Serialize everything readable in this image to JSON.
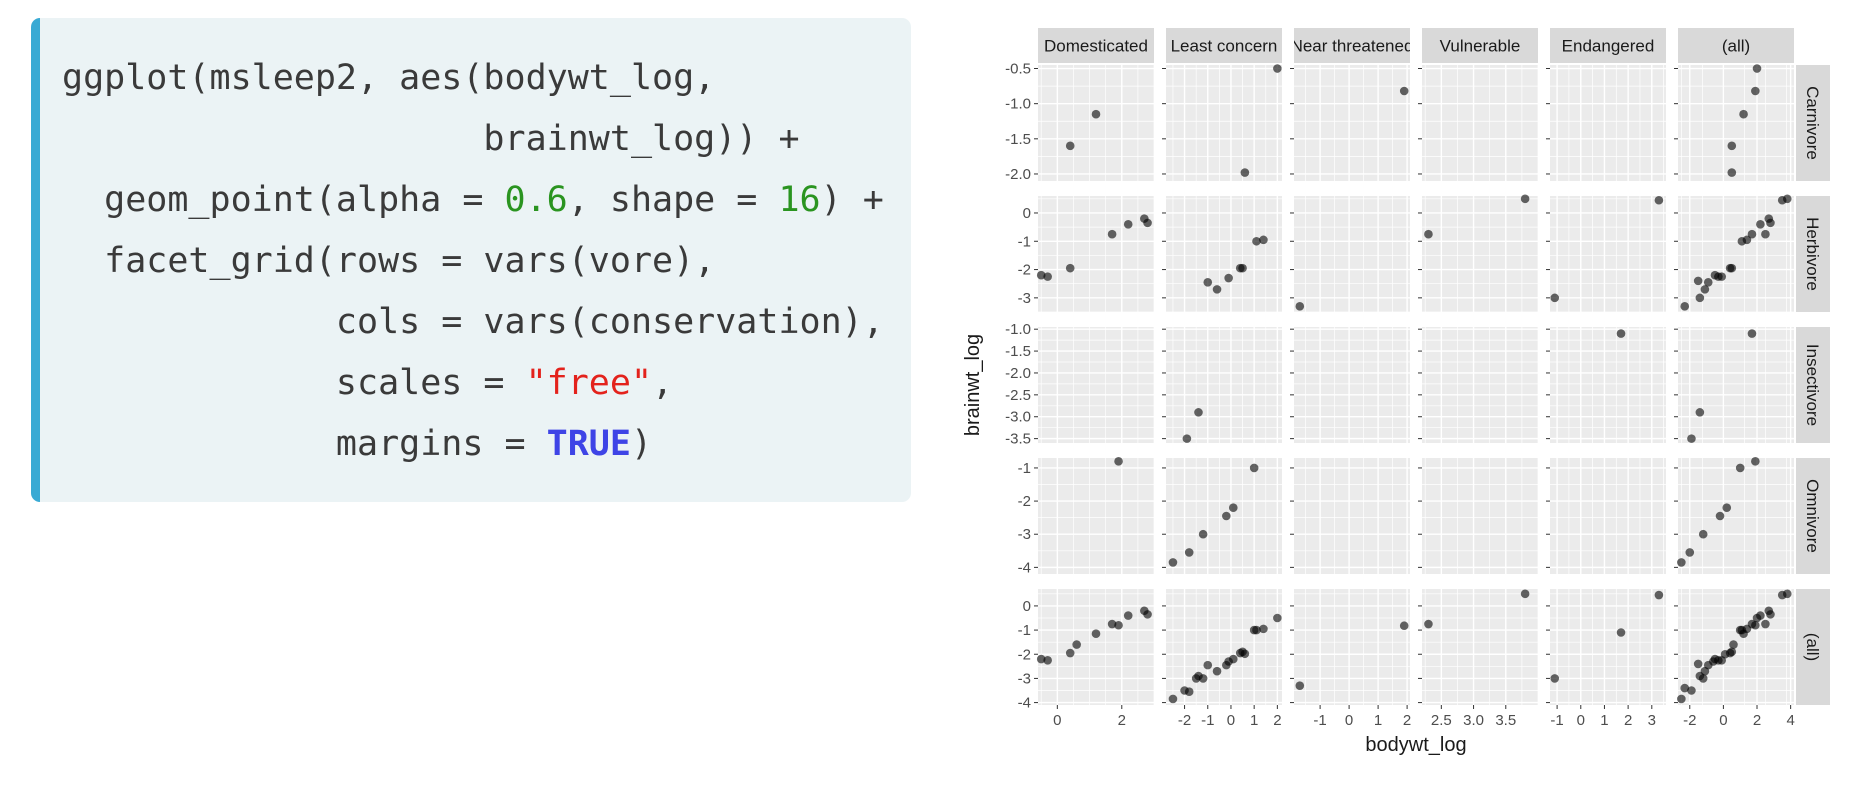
{
  "code": {
    "lines": [
      [
        {
          "t": "plain",
          "v": "ggplot(msleep2, aes(bodywt_log,"
        }
      ],
      [
        {
          "t": "plain",
          "v": "                    brainwt_log)) +"
        }
      ],
      [
        {
          "t": "plain",
          "v": "  geom_point(alpha = "
        },
        {
          "t": "num",
          "v": "0.6"
        },
        {
          "t": "plain",
          "v": ", shape = "
        },
        {
          "t": "num",
          "v": "16"
        },
        {
          "t": "plain",
          "v": ") +"
        }
      ],
      [
        {
          "t": "plain",
          "v": "  facet_grid(rows = vars(vore),"
        }
      ],
      [
        {
          "t": "plain",
          "v": "             cols = vars(conservation),"
        }
      ],
      [
        {
          "t": "plain",
          "v": "             scales = "
        },
        {
          "t": "str",
          "v": "\"free\""
        },
        {
          "t": "plain",
          "v": ","
        }
      ],
      [
        {
          "t": "plain",
          "v": "             margins = "
        },
        {
          "t": "kw",
          "v": "TRUE"
        },
        {
          "t": "plain",
          "v": ")"
        }
      ]
    ]
  },
  "colors": {
    "panel_bg": "#ebebeb",
    "strip_bg": "#d9d9d9",
    "grid": "#ffffff",
    "point": "#000000",
    "code_bg": "#ebf3f5",
    "code_accent": "#39aad4"
  },
  "chart_data": {
    "type": "scatter",
    "facet": "grid",
    "xlabel": "bodywt_log",
    "ylabel": "brainwt_log",
    "point_alpha": 0.6,
    "col_labels": [
      "Domesticated",
      "Least concern",
      "Near threatened",
      "Vulnerable",
      "Endangered",
      "(all)"
    ],
    "row_labels": [
      "Carnivore",
      "Herbivore",
      "Insectivore",
      "Omnivore",
      "(all)"
    ],
    "columns": [
      {
        "xlim": [
          -0.6,
          3.0
        ],
        "xticks": [
          {
            "v": 0,
            "l": "0"
          },
          {
            "v": 2,
            "l": "2"
          }
        ]
      },
      {
        "xlim": [
          -2.8,
          2.2
        ],
        "xticks": [
          {
            "v": -2,
            "l": "-2"
          },
          {
            "v": -1,
            "l": "-1"
          },
          {
            "v": 0,
            "l": "0"
          },
          {
            "v": 1,
            "l": "1"
          },
          {
            "v": 2,
            "l": "2"
          }
        ]
      },
      {
        "xlim": [
          -1.9,
          2.1
        ],
        "xticks": [
          {
            "v": -1,
            "l": "-1"
          },
          {
            "v": 0,
            "l": "0"
          },
          {
            "v": 1,
            "l": "1"
          },
          {
            "v": 2,
            "l": "2"
          }
        ]
      },
      {
        "xlim": [
          2.2,
          4.0
        ],
        "xticks": [
          {
            "v": 2.5,
            "l": "2.5"
          },
          {
            "v": 3.0,
            "l": "3.0"
          },
          {
            "v": 3.5,
            "l": "3.5"
          }
        ]
      },
      {
        "xlim": [
          -1.3,
          3.6
        ],
        "xticks": [
          {
            "v": -1,
            "l": "-1"
          },
          {
            "v": 0,
            "l": "0"
          },
          {
            "v": 1,
            "l": "1"
          },
          {
            "v": 2,
            "l": "2"
          },
          {
            "v": 3,
            "l": "3"
          }
        ]
      },
      {
        "xlim": [
          -2.7,
          4.2
        ],
        "xticks": [
          {
            "v": -2,
            "l": "-2"
          },
          {
            "v": 0,
            "l": "0"
          },
          {
            "v": 2,
            "l": "2"
          },
          {
            "v": 4,
            "l": "4"
          }
        ]
      }
    ],
    "rows": [
      {
        "ylim": [
          -2.1,
          -0.45
        ],
        "yticks": [
          {
            "v": -0.5,
            "l": "-0.5"
          },
          {
            "v": -1.0,
            "l": "-1.0"
          },
          {
            "v": -1.5,
            "l": "-1.5"
          },
          {
            "v": -2.0,
            "l": "-2.0"
          }
        ]
      },
      {
        "ylim": [
          -3.5,
          0.6
        ],
        "yticks": [
          {
            "v": 0,
            "l": "0"
          },
          {
            "v": -1,
            "l": "-1"
          },
          {
            "v": -2,
            "l": "-2"
          },
          {
            "v": -3,
            "l": "-3"
          }
        ]
      },
      {
        "ylim": [
          -3.6,
          -0.95
        ],
        "yticks": [
          {
            "v": -1.0,
            "l": "-1.0"
          },
          {
            "v": -1.5,
            "l": "-1.5"
          },
          {
            "v": -2.0,
            "l": "-2.0"
          },
          {
            "v": -2.5,
            "l": "-2.5"
          },
          {
            "v": -3.0,
            "l": "-3.0"
          },
          {
            "v": -3.5,
            "l": "-3.5"
          }
        ]
      },
      {
        "ylim": [
          -4.2,
          -0.7
        ],
        "yticks": [
          {
            "v": -1,
            "l": "-1"
          },
          {
            "v": -2,
            "l": "-2"
          },
          {
            "v": -3,
            "l": "-3"
          },
          {
            "v": -4,
            "l": "-4"
          }
        ]
      },
      {
        "ylim": [
          -4.1,
          0.7
        ],
        "yticks": [
          {
            "v": 0,
            "l": "0"
          },
          {
            "v": -1,
            "l": "-1"
          },
          {
            "v": -2,
            "l": "-2"
          },
          {
            "v": -3,
            "l": "-3"
          },
          {
            "v": -4,
            "l": "-4"
          }
        ]
      }
    ],
    "panels": [
      {
        "row": 0,
        "col": 0,
        "points": [
          [
            0.4,
            -1.6
          ],
          [
            1.2,
            -1.15
          ]
        ]
      },
      {
        "row": 0,
        "col": 1,
        "points": [
          [
            0.6,
            -1.98
          ],
          [
            2.0,
            -0.5
          ]
        ]
      },
      {
        "row": 0,
        "col": 2,
        "points": [
          [
            1.9,
            -0.82
          ]
        ]
      },
      {
        "row": 0,
        "col": 5,
        "points": [
          [
            0.5,
            -1.98
          ],
          [
            0.5,
            -1.6
          ],
          [
            1.2,
            -1.15
          ],
          [
            1.9,
            -0.82
          ],
          [
            2.0,
            -0.5
          ]
        ]
      },
      {
        "row": 1,
        "col": 0,
        "points": [
          [
            -0.5,
            -2.2
          ],
          [
            -0.3,
            -2.25
          ],
          [
            0.4,
            -1.95
          ],
          [
            1.7,
            -0.75
          ],
          [
            2.2,
            -0.4
          ],
          [
            2.7,
            -0.2
          ],
          [
            2.8,
            -0.35
          ]
        ]
      },
      {
        "row": 1,
        "col": 1,
        "points": [
          [
            -1.0,
            -2.45
          ],
          [
            -0.6,
            -2.7
          ],
          [
            -0.1,
            -2.3
          ],
          [
            0.4,
            -1.95
          ],
          [
            0.5,
            -1.95
          ],
          [
            1.1,
            -1.0
          ],
          [
            1.4,
            -0.95
          ]
        ]
      },
      {
        "row": 1,
        "col": 2,
        "points": [
          [
            -1.7,
            -3.3
          ]
        ]
      },
      {
        "row": 1,
        "col": 3,
        "points": [
          [
            2.3,
            -0.75
          ],
          [
            3.8,
            0.5
          ]
        ]
      },
      {
        "row": 1,
        "col": 4,
        "points": [
          [
            -1.1,
            -3.0
          ],
          [
            3.3,
            0.45
          ]
        ]
      },
      {
        "row": 1,
        "col": 5,
        "points": [
          [
            -2.3,
            -3.3
          ],
          [
            -1.5,
            -2.4
          ],
          [
            -1.4,
            -3.0
          ],
          [
            -1.1,
            -2.7
          ],
          [
            -0.9,
            -2.45
          ],
          [
            -0.5,
            -2.2
          ],
          [
            -0.3,
            -2.25
          ],
          [
            -0.1,
            -2.25
          ],
          [
            0.4,
            -1.95
          ],
          [
            0.5,
            -1.95
          ],
          [
            1.1,
            -1.0
          ],
          [
            1.4,
            -0.95
          ],
          [
            1.7,
            -0.75
          ],
          [
            2.2,
            -0.4
          ],
          [
            2.5,
            -0.75
          ],
          [
            2.7,
            -0.2
          ],
          [
            2.8,
            -0.35
          ],
          [
            3.5,
            0.45
          ],
          [
            3.8,
            0.5
          ]
        ]
      },
      {
        "row": 2,
        "col": 1,
        "points": [
          [
            -1.9,
            -3.5
          ],
          [
            -1.4,
            -2.9
          ]
        ]
      },
      {
        "row": 2,
        "col": 4,
        "points": [
          [
            1.7,
            -1.1
          ]
        ]
      },
      {
        "row": 2,
        "col": 5,
        "points": [
          [
            -1.9,
            -3.5
          ],
          [
            -1.4,
            -2.9
          ],
          [
            1.7,
            -1.1
          ]
        ]
      },
      {
        "row": 3,
        "col": 0,
        "points": [
          [
            1.9,
            -0.8
          ]
        ]
      },
      {
        "row": 3,
        "col": 1,
        "points": [
          [
            -2.5,
            -3.85
          ],
          [
            -1.8,
            -3.55
          ],
          [
            -1.2,
            -3.0
          ],
          [
            -0.2,
            -2.45
          ],
          [
            0.1,
            -2.2
          ],
          [
            1.0,
            -1.0
          ]
        ]
      },
      {
        "row": 3,
        "col": 5,
        "points": [
          [
            -2.5,
            -3.85
          ],
          [
            -2.0,
            -3.55
          ],
          [
            -1.2,
            -3.0
          ],
          [
            -0.2,
            -2.45
          ],
          [
            0.2,
            -2.2
          ],
          [
            1.0,
            -1.0
          ],
          [
            1.9,
            -0.8
          ]
        ]
      },
      {
        "row": 4,
        "col": 0,
        "points": [
          [
            -0.5,
            -2.2
          ],
          [
            -0.3,
            -2.25
          ],
          [
            0.4,
            -1.95
          ],
          [
            0.6,
            -1.6
          ],
          [
            1.2,
            -1.15
          ],
          [
            1.7,
            -0.75
          ],
          [
            1.9,
            -0.8
          ],
          [
            2.2,
            -0.4
          ],
          [
            2.7,
            -0.2
          ],
          [
            2.8,
            -0.35
          ]
        ]
      },
      {
        "row": 4,
        "col": 1,
        "points": [
          [
            -2.5,
            -3.85
          ],
          [
            -2.0,
            -3.5
          ],
          [
            -1.8,
            -3.55
          ],
          [
            -1.5,
            -3.0
          ],
          [
            -1.4,
            -2.9
          ],
          [
            -1.2,
            -3.0
          ],
          [
            -1.0,
            -2.45
          ],
          [
            -0.6,
            -2.7
          ],
          [
            -0.2,
            -2.45
          ],
          [
            -0.1,
            -2.3
          ],
          [
            0.1,
            -2.2
          ],
          [
            0.4,
            -1.95
          ],
          [
            0.5,
            -1.9
          ],
          [
            0.6,
            -1.98
          ],
          [
            1.0,
            -1.0
          ],
          [
            1.1,
            -1.0
          ],
          [
            1.4,
            -0.95
          ],
          [
            2.0,
            -0.5
          ]
        ]
      },
      {
        "row": 4,
        "col": 2,
        "points": [
          [
            -1.7,
            -3.3
          ],
          [
            1.9,
            -0.82
          ]
        ]
      },
      {
        "row": 4,
        "col": 3,
        "points": [
          [
            2.3,
            -0.75
          ],
          [
            3.8,
            0.5
          ]
        ]
      },
      {
        "row": 4,
        "col": 4,
        "points": [
          [
            -1.1,
            -3.0
          ],
          [
            1.7,
            -1.1
          ],
          [
            3.3,
            0.45
          ]
        ]
      },
      {
        "row": 4,
        "col": 5,
        "points": [
          [
            -2.5,
            -3.85
          ],
          [
            -2.3,
            -3.4
          ],
          [
            -1.9,
            -3.5
          ],
          [
            -1.5,
            -2.4
          ],
          [
            -1.4,
            -2.9
          ],
          [
            -1.2,
            -3.0
          ],
          [
            -1.1,
            -2.7
          ],
          [
            -0.9,
            -2.45
          ],
          [
            -0.6,
            -2.3
          ],
          [
            -0.5,
            -2.2
          ],
          [
            -0.3,
            -2.25
          ],
          [
            -0.1,
            -2.25
          ],
          [
            0.1,
            -2.0
          ],
          [
            0.4,
            -1.95
          ],
          [
            0.5,
            -1.9
          ],
          [
            0.6,
            -1.6
          ],
          [
            1.0,
            -1.0
          ],
          [
            1.1,
            -1.0
          ],
          [
            1.2,
            -1.15
          ],
          [
            1.4,
            -0.95
          ],
          [
            1.7,
            -0.75
          ],
          [
            1.9,
            -0.8
          ],
          [
            2.0,
            -0.5
          ],
          [
            2.2,
            -0.4
          ],
          [
            2.5,
            -0.75
          ],
          [
            2.7,
            -0.2
          ],
          [
            2.8,
            -0.35
          ],
          [
            3.5,
            0.45
          ],
          [
            3.8,
            0.5
          ]
        ]
      }
    ]
  }
}
